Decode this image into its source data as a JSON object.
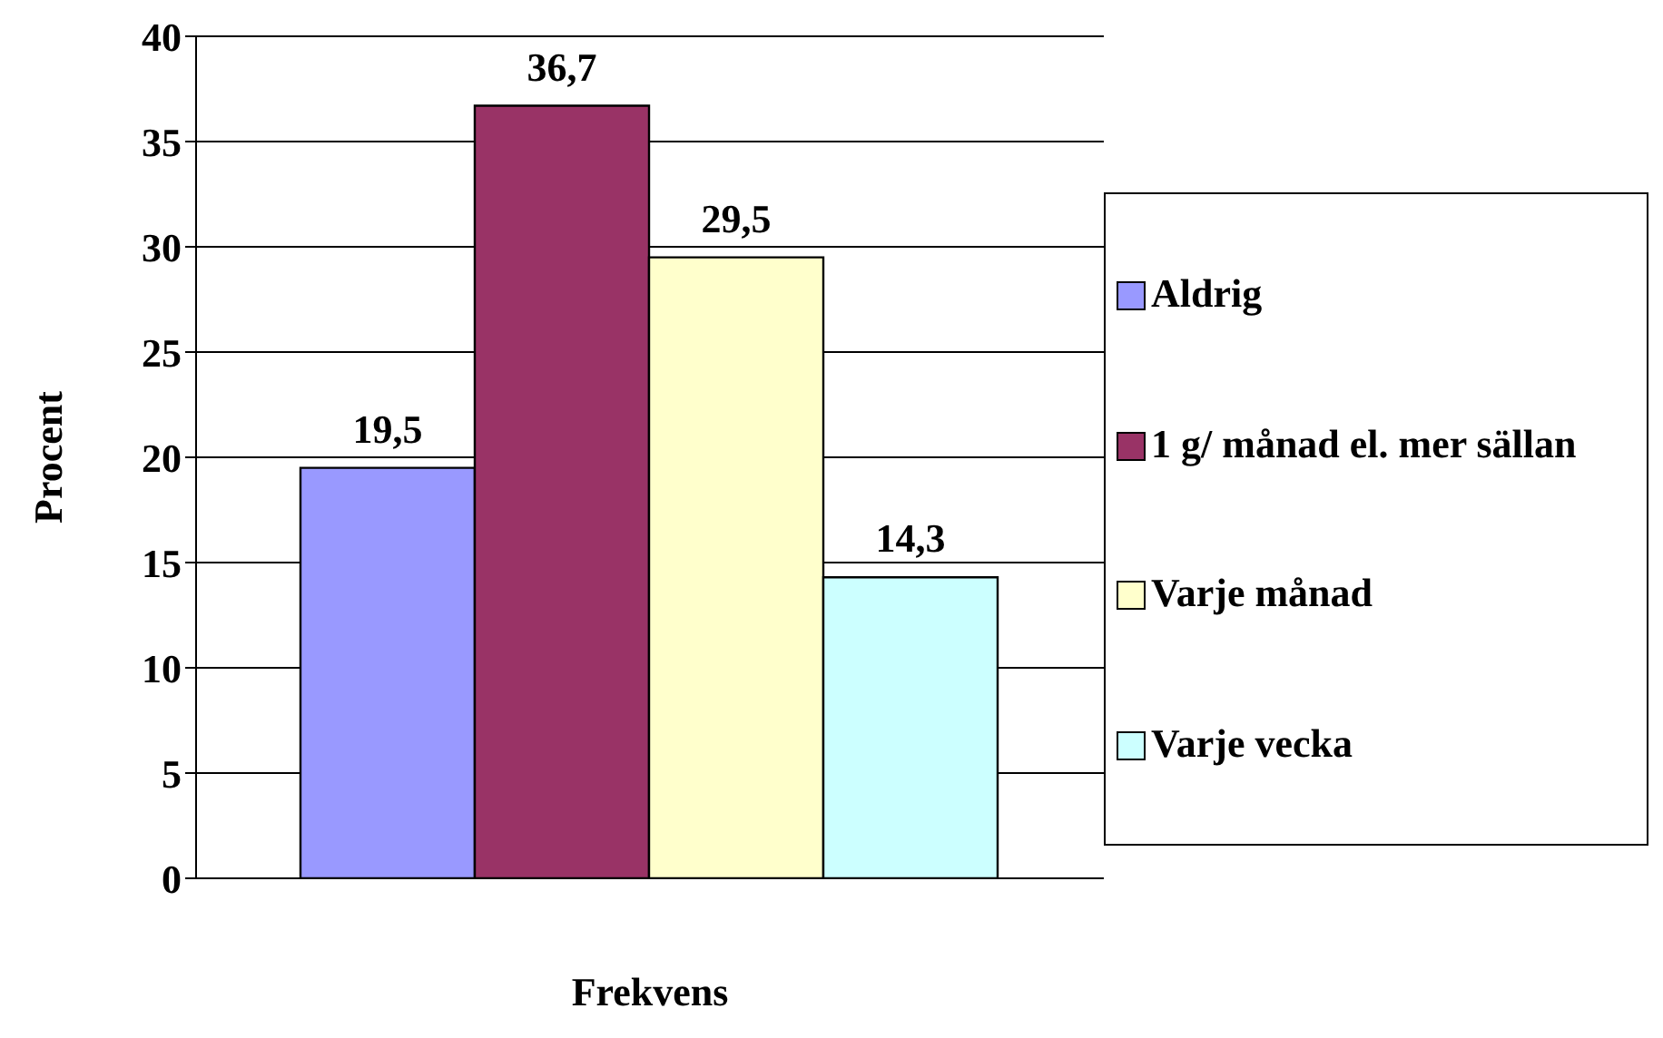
{
  "chart_data": {
    "type": "bar",
    "xlabel": "Frekvens",
    "ylabel": "Procent",
    "categories": [
      null
    ],
    "series": [
      {
        "name": "Aldrig",
        "color": "#9999ff",
        "values": [
          19.5
        ],
        "value_labels": [
          "19,5"
        ]
      },
      {
        "name": "1 g/ månad el. mer sällan",
        "color": "#993366",
        "values": [
          36.7
        ],
        "value_labels": [
          "36,7"
        ]
      },
      {
        "name": "Varje månad",
        "color": "#ffffcc",
        "values": [
          29.5
        ],
        "value_labels": [
          "29,5"
        ]
      },
      {
        "name": "Varje vecka",
        "color": "#ccffff",
        "values": [
          14.3
        ],
        "value_labels": [
          "14,3"
        ]
      }
    ],
    "ylim": [
      0,
      40
    ],
    "yticks": [
      0,
      5,
      10,
      15,
      20,
      25,
      30,
      35,
      40
    ],
    "grid": "y",
    "legend": "right"
  }
}
